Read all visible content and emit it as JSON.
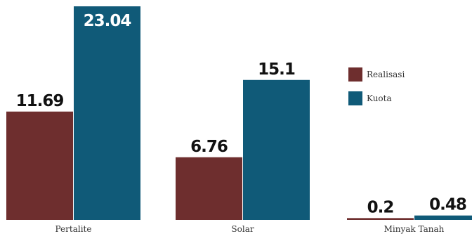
{
  "chart_data": {
    "type": "bar",
    "categories": [
      "Pertalite",
      "Solar",
      "Minyak Tanah"
    ],
    "series": [
      {
        "name": "Realisasi",
        "color": "#6e2e2e",
        "values": [
          11.69,
          6.76,
          0.2
        ]
      },
      {
        "name": "Kuota",
        "color": "#105a78",
        "values": [
          23.04,
          15.1,
          0.48
        ]
      }
    ],
    "value_labels": [
      [
        "11.69",
        "6.76",
        "0.2"
      ],
      [
        "23.04",
        "15.1",
        "0.48"
      ]
    ],
    "title": "",
    "xlabel": "",
    "ylabel": "",
    "ylim": [
      0,
      23.04
    ],
    "grid": false,
    "legend": {
      "placement": "right",
      "entries": [
        "Realisasi",
        "Kuota"
      ]
    }
  }
}
